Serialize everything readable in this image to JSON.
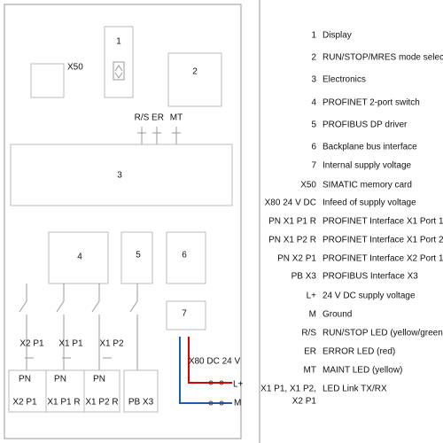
{
  "diagram": {
    "blocks": [
      "1",
      "2",
      "3",
      "4",
      "5",
      "6",
      "7"
    ],
    "x50": "X50",
    "leds": [
      "R/S",
      "ER",
      "MT"
    ],
    "link_leds": [
      "X2 P1",
      "X1 P1",
      "X1 P2"
    ],
    "ports": [
      {
        "type": "PN",
        "name": "X2 P1"
      },
      {
        "type": "PN",
        "name": "X1 P1 R"
      },
      {
        "type": "PN",
        "name": "X1 P2 R"
      },
      {
        "name": "PB X3"
      }
    ],
    "supply": {
      "label": "X80 DC 24 V",
      "plus": "L+",
      "minus": "M"
    }
  },
  "legend": [
    {
      "key": "1",
      "text": "Display"
    },
    {
      "key": "2",
      "text": "RUN/STOP/MRES mode selector"
    },
    {
      "key": "3",
      "text": "Electronics"
    },
    {
      "key": "4",
      "text": "PROFINET 2-port switch"
    },
    {
      "key": "5",
      "text": "PROFIBUS DP driver"
    },
    {
      "key": "6",
      "text": "Backplane bus interface"
    },
    {
      "key": "7",
      "text": "Internal supply voltage"
    },
    {
      "key": "X50",
      "text": "SIMATIC memory card"
    },
    {
      "key": "X80 24 V DC",
      "text": "Infeed of supply voltage"
    },
    {
      "key": "PN X1 P1 R",
      "text": "PROFINET Interface X1 Port 1"
    },
    {
      "key": "PN X1 P2 R",
      "text": "PROFINET Interface X1 Port 2"
    },
    {
      "key": "PN X2 P1",
      "text": "PROFINET Interface X2 Port 1"
    },
    {
      "key": "PB X3",
      "text": "PROFIBUS Interface X3"
    },
    {
      "key": "L+",
      "text": "24 V DC supply voltage"
    },
    {
      "key": "M",
      "text": "Ground"
    },
    {
      "key": "R/S",
      "text": "RUN/STOP LED (yellow/green)"
    },
    {
      "key": "ER",
      "text": "ERROR LED (red)"
    },
    {
      "key": "MT",
      "text": "MAINT LED (yellow)"
    },
    {
      "key": [
        "X1 P1, X1 P2,",
        "X2 P1"
      ],
      "text": "LED Link TX/RX"
    }
  ]
}
